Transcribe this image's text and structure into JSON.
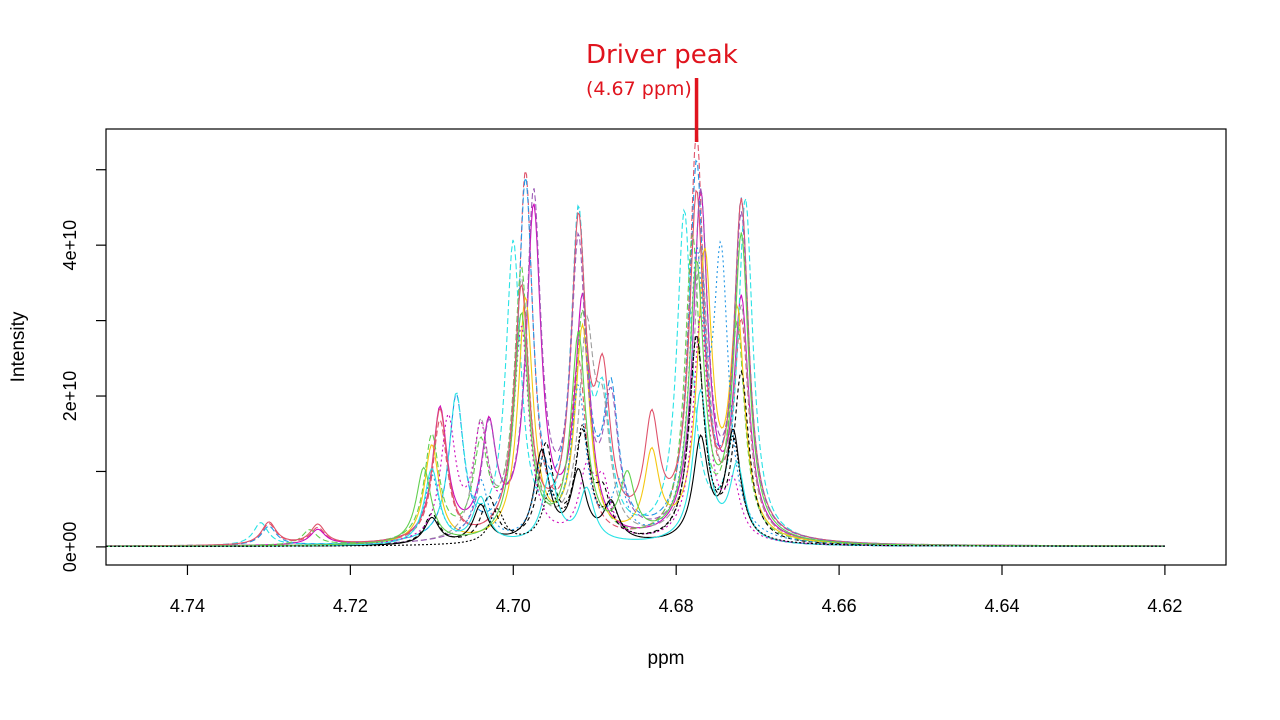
{
  "chart_data": {
    "type": "line",
    "title": "",
    "xlabel": "ppm",
    "ylabel": "Intensity",
    "xlim": [
      4.75,
      4.6125
    ],
    "x_reversed": true,
    "ylim": [
      -2400000000,
      55400000000
    ],
    "x_ticks": [
      4.74,
      4.72,
      4.7,
      4.68,
      4.66,
      4.64,
      4.62
    ],
    "x_tick_labels": [
      "4.74",
      "4.72",
      "4.70",
      "4.68",
      "4.66",
      "4.64",
      "4.62"
    ],
    "y_ticks": [
      0,
      10000000000,
      20000000000,
      30000000000,
      40000000000,
      50000000000
    ],
    "y_tick_labels": [
      "0e+00",
      "",
      "2e+10",
      "",
      "4e+10",
      ""
    ],
    "grid": false,
    "legend": "none",
    "annotation": {
      "title": "Driver peak",
      "subtitle": "(4.67 ppm)",
      "x": 4.6775,
      "color": "#e0141e"
    },
    "series": [
      {
        "color": "#df536b",
        "dash": "6,3",
        "peaks": [
          [
            4.6775,
            53.5
          ],
          [
            4.6985,
            48.8
          ],
          [
            4.692,
            23.0
          ],
          [
            4.672,
            28.0
          ],
          [
            4.709,
            16.0
          ],
          [
            4.73,
            2.8
          ],
          [
            4.724,
            2.2
          ]
        ]
      },
      {
        "color": "#2297e6",
        "dash": "6,3",
        "peaks": [
          [
            4.6985,
            47.0
          ],
          [
            4.692,
            42.0
          ],
          [
            4.6775,
            49.0
          ],
          [
            4.672,
            44.0
          ],
          [
            4.707,
            19.0
          ],
          [
            4.688,
            18.0
          ],
          [
            4.73,
            2.5
          ]
        ]
      },
      {
        "color": "#cd0bbc",
        "dash": "",
        "peaks": [
          [
            4.6975,
            43.5
          ],
          [
            4.6915,
            31.5
          ],
          [
            4.677,
            45.5
          ],
          [
            4.672,
            31.0
          ],
          [
            4.709,
            17.5
          ],
          [
            4.703,
            14.5
          ],
          [
            4.724,
            2.0
          ]
        ]
      },
      {
        "color": "#28e2e5",
        "dash": "6,3",
        "peaks": [
          [
            4.7,
            39.0
          ],
          [
            4.692,
            42.0
          ],
          [
            4.679,
            43.0
          ],
          [
            4.6715,
            45.0
          ],
          [
            4.707,
            19.0
          ],
          [
            4.689,
            16.0
          ],
          [
            4.731,
            3.0
          ]
        ]
      },
      {
        "color": "#61d04f",
        "dash": "6,3",
        "peaks": [
          [
            4.699,
            35.5
          ],
          [
            4.6915,
            30.0
          ],
          [
            4.678,
            40.0
          ],
          [
            4.6725,
            28.0
          ],
          [
            4.71,
            14.0
          ],
          [
            4.704,
            12.0
          ],
          [
            4.725,
            2.0
          ]
        ]
      },
      {
        "color": "#9e9e9e",
        "dash": "6,3",
        "peaks": [
          [
            4.699,
            34.0
          ],
          [
            4.691,
            26.0
          ],
          [
            4.677,
            38.0
          ],
          [
            4.672,
            30.0
          ],
          [
            4.704,
            15.0
          ],
          [
            4.689,
            14.0
          ]
        ]
      },
      {
        "color": "#f5c710",
        "dash": "",
        "peaks": [
          [
            4.6985,
            32.0
          ],
          [
            4.6915,
            28.0
          ],
          [
            4.6765,
            37.0
          ],
          [
            4.6725,
            29.0
          ],
          [
            4.71,
            13.0
          ],
          [
            4.683,
            11.0
          ]
        ]
      },
      {
        "color": "#df536b",
        "dash": "",
        "peaks": [
          [
            4.699,
            33.0
          ],
          [
            4.692,
            40.5
          ],
          [
            4.6775,
            44.5
          ],
          [
            4.672,
            44.0
          ],
          [
            4.709,
            17.5
          ],
          [
            4.689,
            19.0
          ],
          [
            4.683,
            14.5
          ],
          [
            4.73,
            3.0
          ],
          [
            4.724,
            2.6
          ]
        ]
      },
      {
        "color": "#9b59b6",
        "dash": "6,3",
        "peaks": [
          [
            4.6975,
            45.0
          ],
          [
            4.692,
            38.0
          ],
          [
            4.677,
            45.0
          ],
          [
            4.672,
            42.0
          ],
          [
            4.703,
            14.5
          ],
          [
            4.688,
            17.0
          ]
        ]
      },
      {
        "color": "#000000",
        "dash": "4,3",
        "peaks": [
          [
            4.696,
            12.5
          ],
          [
            4.6915,
            13.5
          ],
          [
            4.6775,
            27.0
          ],
          [
            4.672,
            22.0
          ],
          [
            4.703,
            6.0
          ],
          [
            4.689,
            5.5
          ],
          [
            4.71,
            4.0
          ]
        ]
      },
      {
        "color": "#000000",
        "dash": "",
        "peaks": [
          [
            4.6965,
            12.0
          ],
          [
            4.692,
            9.0
          ],
          [
            4.677,
            13.5
          ],
          [
            4.673,
            14.5
          ],
          [
            4.704,
            5.0
          ],
          [
            4.688,
            5.0
          ],
          [
            4.71,
            3.5
          ]
        ]
      },
      {
        "color": "#2297e6",
        "dash": "2,3",
        "peaks": [
          [
            4.6965,
            10.0
          ],
          [
            4.692,
            20.0
          ],
          [
            4.6775,
            35.0
          ],
          [
            4.6745,
            36.0
          ],
          [
            4.704,
            8.0
          ],
          [
            4.687,
            7.0
          ],
          [
            4.71,
            9.0
          ]
        ]
      },
      {
        "color": "#28e2e5",
        "dash": "",
        "peaks": [
          [
            4.6955,
            9.0
          ],
          [
            4.691,
            7.0
          ],
          [
            4.677,
            20.0
          ],
          [
            4.6725,
            10.0
          ],
          [
            4.71,
            10.0
          ],
          [
            4.704,
            6.0
          ]
        ]
      },
      {
        "color": "#cd0bbc",
        "dash": "2,3",
        "peaks": [
          [
            4.699,
            28.0
          ],
          [
            4.691,
            8.5
          ],
          [
            4.677,
            30.0
          ],
          [
            4.673,
            7.0
          ],
          [
            4.708,
            16.0
          ],
          [
            4.704,
            14.0
          ],
          [
            4.689,
            7.0
          ]
        ]
      },
      {
        "color": "#61d04f",
        "dash": "",
        "peaks": [
          [
            4.699,
            30.0
          ],
          [
            4.692,
            27.0
          ],
          [
            4.6775,
            36.0
          ],
          [
            4.672,
            40.0
          ],
          [
            4.711,
            10.0
          ],
          [
            4.686,
            8.0
          ]
        ]
      },
      {
        "color": "#000000",
        "dash": "2,2",
        "peaks": [
          [
            4.6955,
            6.0
          ],
          [
            4.6915,
            15.0
          ],
          [
            4.6775,
            27.0
          ],
          [
            4.673,
            13.0
          ],
          [
            4.702,
            4.5
          ],
          [
            4.688,
            4.0
          ]
        ]
      }
    ]
  }
}
